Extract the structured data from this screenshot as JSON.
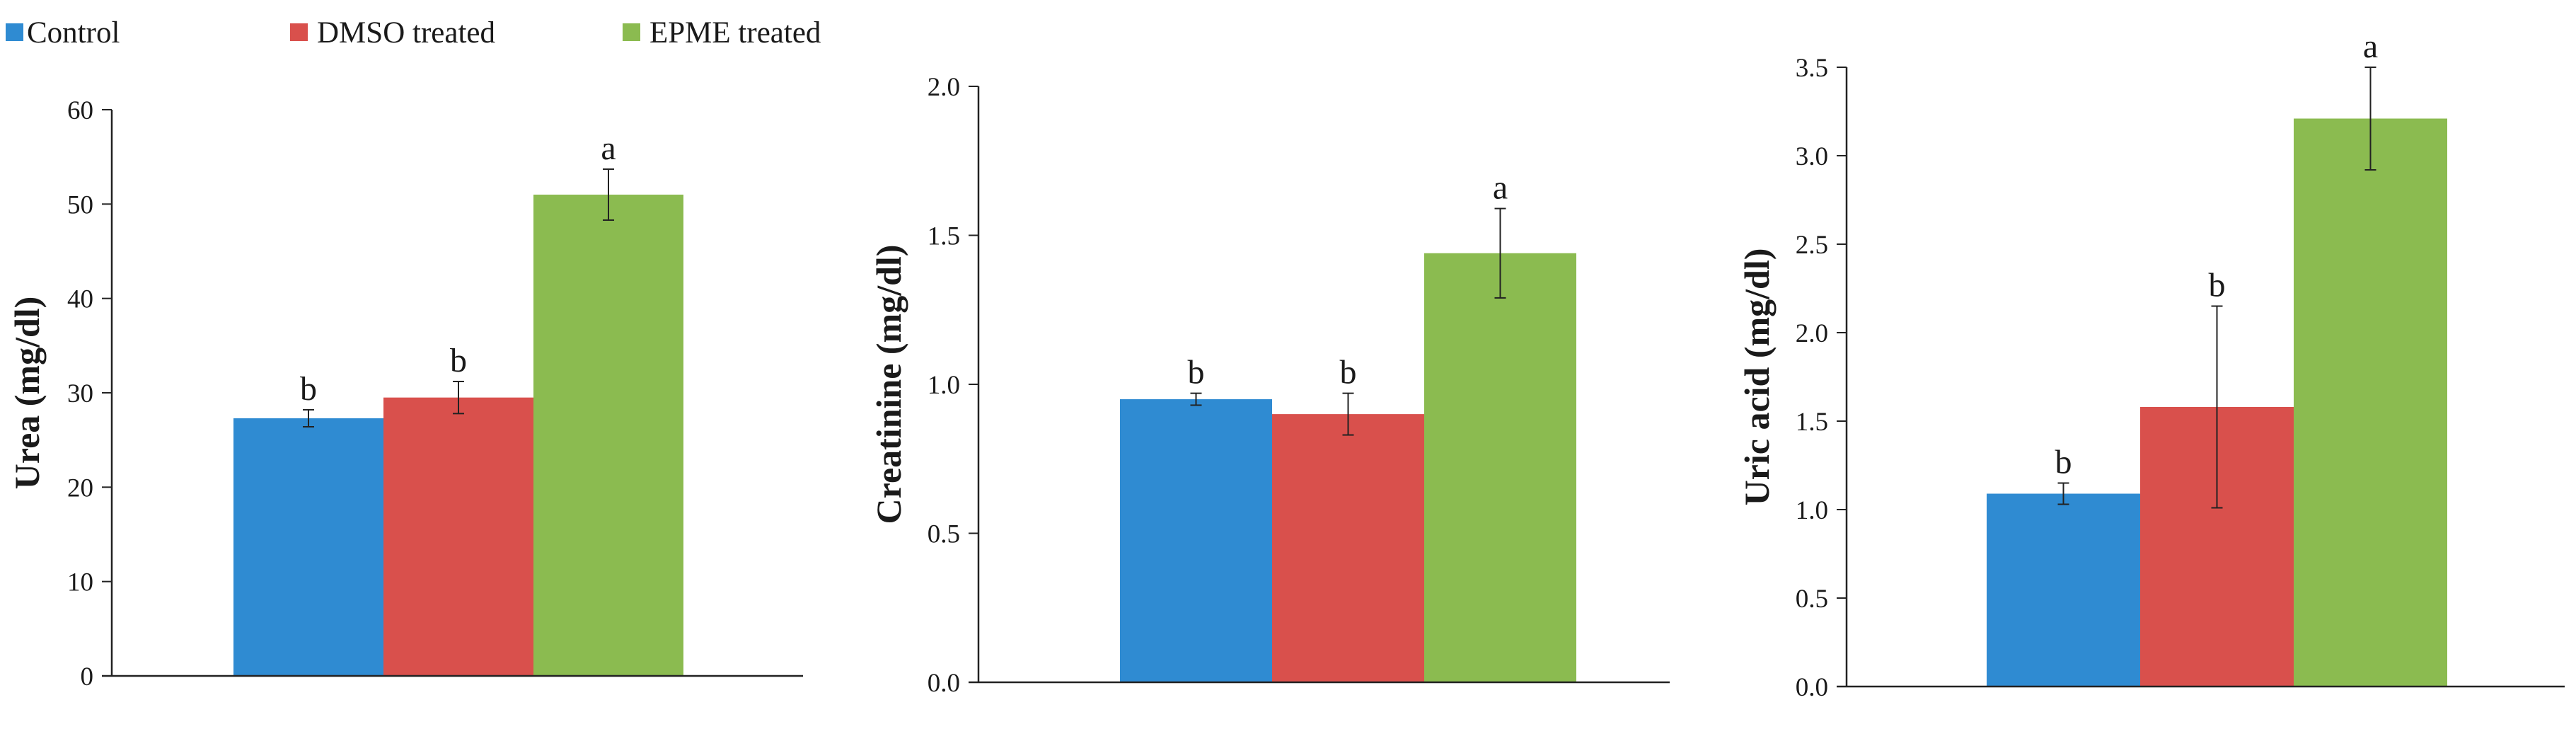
{
  "legend": {
    "position": "top-left",
    "entries": [
      {
        "label": "Control",
        "color": "#2f8bd2"
      },
      {
        "label": "DMSO treated",
        "color": "#d9504c"
      },
      {
        "label": "EPME treated",
        "color": "#8bbb50"
      }
    ]
  },
  "chart_data": [
    {
      "type": "bar",
      "title": "",
      "xlabel": "",
      "ylabel": "Urea (mg/dl)",
      "ylim": [
        0,
        60
      ],
      "yticks": [
        0,
        10,
        20,
        30,
        40,
        50,
        60
      ],
      "ytick_labels": [
        "0",
        "10",
        "20",
        "30",
        "40",
        "50",
        "60"
      ],
      "grid": false,
      "series": [
        {
          "name": "Control",
          "value": 27.3,
          "error": 0.9,
          "annotation": "b",
          "color": "#2f8bd2"
        },
        {
          "name": "DMSO treated",
          "value": 29.5,
          "error": 1.7,
          "annotation": "b",
          "color": "#d9504c"
        },
        {
          "name": "EPME treated",
          "value": 51.0,
          "error": 2.7,
          "annotation": "a",
          "color": "#8bbb50"
        }
      ]
    },
    {
      "type": "bar",
      "title": "",
      "xlabel": "",
      "ylabel": "Creatinine (mg/dl)",
      "ylim": [
        0,
        2.0
      ],
      "yticks": [
        0,
        0.5,
        1.0,
        1.5,
        2.0
      ],
      "ytick_labels": [
        "0.0",
        "0.5",
        "1.0",
        "1.5",
        "2.0"
      ],
      "grid": false,
      "series": [
        {
          "name": "Control",
          "value": 0.95,
          "error": 0.02,
          "annotation": "b",
          "color": "#2f8bd2"
        },
        {
          "name": "DMSO treated",
          "value": 0.9,
          "error": 0.07,
          "annotation": "b",
          "color": "#d9504c"
        },
        {
          "name": "EPME treated",
          "value": 1.44,
          "error": 0.15,
          "annotation": "a",
          "color": "#8bbb50"
        }
      ]
    },
    {
      "type": "bar",
      "title": "",
      "xlabel": "",
      "ylabel": "Uric acid (mg/dl)",
      "ylim": [
        0,
        3.5
      ],
      "yticks": [
        0,
        0.5,
        1.0,
        1.5,
        2.0,
        2.5,
        3.0,
        3.5
      ],
      "ytick_labels": [
        "0.0",
        "0.5",
        "1.0",
        "1.5",
        "2.0",
        "2.5",
        "3.0",
        "3.5"
      ],
      "grid": false,
      "series": [
        {
          "name": "Control",
          "value": 1.09,
          "error": 0.06,
          "annotation": "b",
          "color": "#2f8bd2"
        },
        {
          "name": "DMSO treated",
          "value": 1.58,
          "error": 0.57,
          "annotation": "b",
          "color": "#d9504c"
        },
        {
          "name": "EPME treated",
          "value": 3.21,
          "error": 0.29,
          "annotation": "a",
          "color": "#8bbb50"
        }
      ]
    }
  ]
}
